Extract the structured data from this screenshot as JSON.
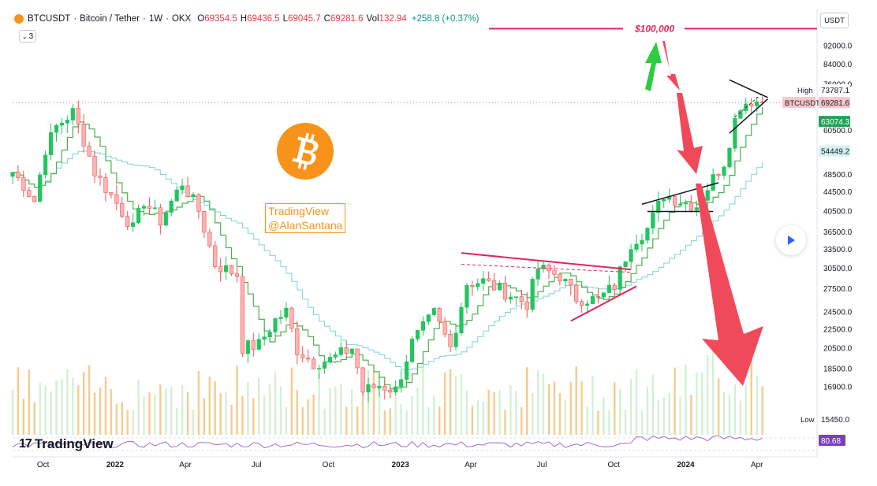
{
  "header": {
    "symbol": "BTCUSDT",
    "name": "Bitcoin / Tether",
    "interval": "1W",
    "exchange": "OKX",
    "o_label": "O",
    "o_value": "69354.5",
    "h_label": "H",
    "h_value": "69436.5",
    "l_label": "L",
    "l_value": "69045.7",
    "c_label": "C",
    "c_value": "69281.6",
    "vol_label": "Vol",
    "vol_value": "132.94",
    "change": "+258.8 (+0.37%)",
    "indicators_count": "3"
  },
  "currency_button": "USDT",
  "watermark": {
    "line1": "TradingView",
    "line2": "@AlanSantana"
  },
  "brand": "TradingView",
  "price_badges": {
    "high_label": "High",
    "high_value": "73787.1",
    "symbol_label": "BTCUSDT",
    "last_value": "69281.6",
    "ma_fast_value": "63074.3",
    "ma_slow_value": "54449.2",
    "low_label": "Low",
    "low_value": "15450.0",
    "rsi_value": "80.68"
  },
  "annotation": {
    "target_label": "$100,000"
  },
  "colors": {
    "up": "#089981",
    "up_candle": "#22c55e",
    "down_candle": "#ef5350",
    "ma_fast": "#4caf50",
    "ma_slow": "#7fd3d3",
    "target_line": "#e0245e",
    "green_arrow": "#2ecc40",
    "red_arrow": "#f04a5a",
    "volume": "#f4c27a",
    "rsi": "#9c6ade",
    "btc_orange": "#f7931a"
  },
  "chart_data": {
    "type": "candlestick",
    "symbol": "BTCUSDT",
    "interval": "1W",
    "y_scale": "log",
    "ylim": [
      13500,
      110000
    ],
    "y_ticks": [
      92000.0,
      84000.0,
      76000.0,
      60500.0,
      48500.0,
      44500.0,
      40500.0,
      36500.0,
      33500.0,
      30500.0,
      27500.0,
      24500.0,
      22500.0,
      20500.0,
      18500.0,
      16900.0
    ],
    "x_ticks": [
      {
        "date": "2021-10-01",
        "label": "Oct"
      },
      {
        "date": "2022-01-01",
        "label": "2022"
      },
      {
        "date": "2022-04-01",
        "label": "Apr"
      },
      {
        "date": "2022-07-01",
        "label": "Jul"
      },
      {
        "date": "2022-10-01",
        "label": "Oct"
      },
      {
        "date": "2023-01-01",
        "label": "2023"
      },
      {
        "date": "2023-04-01",
        "label": "Apr"
      },
      {
        "date": "2023-07-01",
        "label": "Jul"
      },
      {
        "date": "2023-10-01",
        "label": "Oct"
      },
      {
        "date": "2024-01-01",
        "label": "2024"
      },
      {
        "date": "2024-04-01",
        "label": "Apr"
      }
    ],
    "xlim": [
      "2021-08-23",
      "2024-06-15"
    ],
    "anchors": [
      [
        "2021-08-23",
        49000
      ],
      [
        "2021-09-06",
        46000
      ],
      [
        "2021-09-20",
        42500
      ],
      [
        "2021-10-04",
        55000
      ],
      [
        "2021-10-18",
        61500
      ],
      [
        "2021-11-08",
        66000
      ],
      [
        "2021-11-22",
        57500
      ],
      [
        "2021-12-06",
        49000
      ],
      [
        "2022-01-03",
        42000
      ],
      [
        "2022-01-24",
        37000
      ],
      [
        "2022-02-07",
        42500
      ],
      [
        "2022-02-28",
        38500
      ],
      [
        "2022-03-28",
        46500
      ],
      [
        "2022-04-18",
        40500
      ],
      [
        "2022-05-09",
        31000
      ],
      [
        "2022-06-06",
        29500
      ],
      [
        "2022-06-13",
        20500
      ],
      [
        "2022-07-04",
        20800
      ],
      [
        "2022-07-25",
        23500
      ],
      [
        "2022-08-08",
        24500
      ],
      [
        "2022-08-22",
        20300
      ],
      [
        "2022-09-12",
        19000
      ],
      [
        "2022-10-03",
        19300
      ],
      [
        "2022-11-01",
        20500
      ],
      [
        "2022-11-14",
        16500
      ],
      [
        "2022-12-05",
        17000
      ],
      [
        "2022-12-26",
        16600
      ],
      [
        "2023-01-16",
        21000
      ],
      [
        "2023-02-13",
        24300
      ],
      [
        "2023-03-06",
        20500
      ],
      [
        "2023-03-27",
        28200
      ],
      [
        "2023-04-17",
        28500
      ],
      [
        "2023-05-15",
        27000
      ],
      [
        "2023-06-12",
        25500
      ],
      [
        "2023-06-26",
        30400
      ],
      [
        "2023-07-24",
        29300
      ],
      [
        "2023-08-14",
        26200
      ],
      [
        "2023-09-11",
        26000
      ],
      [
        "2023-10-02",
        27900
      ],
      [
        "2023-10-23",
        34500
      ],
      [
        "2023-11-13",
        37000
      ],
      [
        "2023-12-04",
        43900
      ],
      [
        "2023-12-25",
        42500
      ],
      [
        "2024-01-15",
        41500
      ],
      [
        "2024-02-05",
        47500
      ],
      [
        "2024-02-19",
        51500
      ],
      [
        "2024-03-04",
        63500
      ],
      [
        "2024-03-11",
        68500
      ],
      [
        "2024-03-25",
        70000
      ],
      [
        "2024-04-08",
        69281.6
      ]
    ],
    "ma_fast_last": 63074.3,
    "ma_slow_last": 54449.2,
    "high": 73787.1,
    "low": 15450.0,
    "last": 69281.6,
    "target": 100000,
    "rsi_last": 80.68
  }
}
